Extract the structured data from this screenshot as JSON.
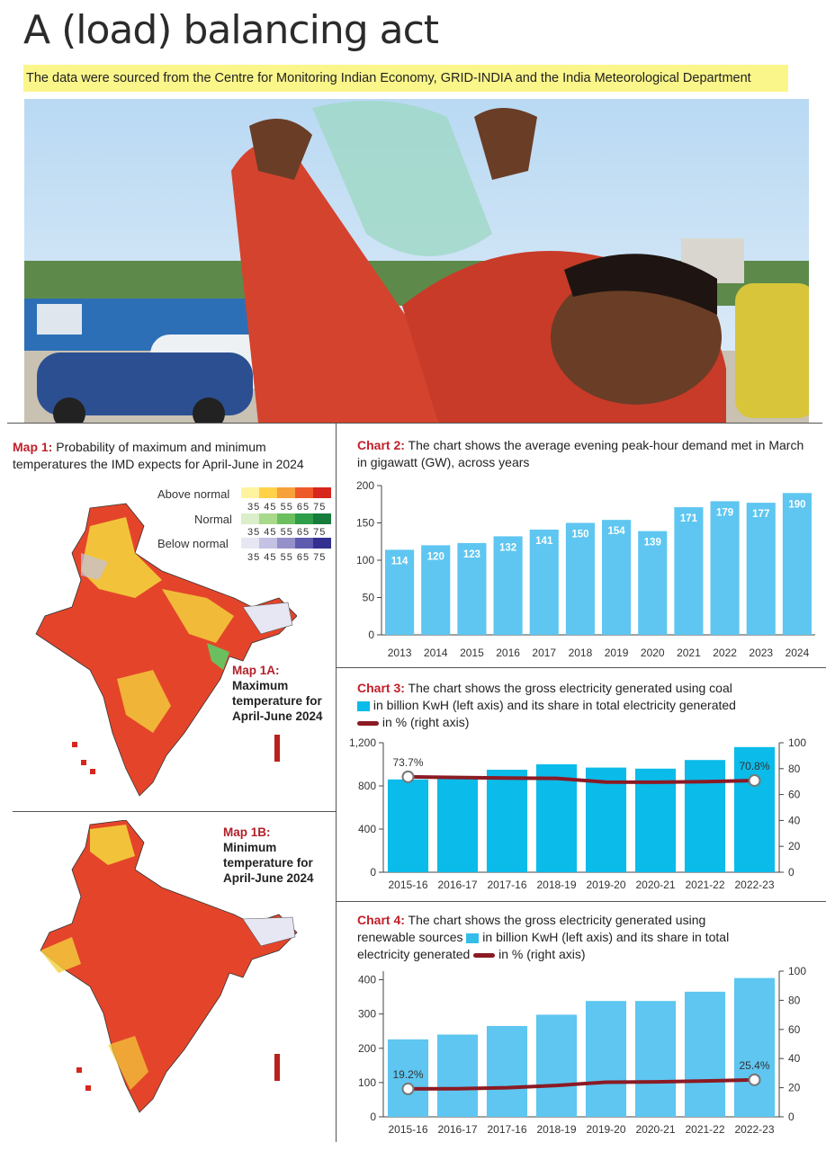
{
  "page": {
    "title": "A (load) balancing act",
    "subtitle": "The data were sourced from the Centre for Monitoring Indian Economy, GRID-INDIA and the India Meteorological Department",
    "highlight_color": "#fbf68a"
  },
  "photo": {
    "description_icon": "man-drinking-water-photo-icon"
  },
  "map1": {
    "label": "Map 1:",
    "caption": "Probability of maximum and minimum temperatures the IMD expects for April-June in 2024",
    "legend": {
      "above": "Above normal",
      "normal": "Normal",
      "below": "Below normal",
      "scale": "35 45 55 65 75",
      "above_colors": [
        "#fff3a0",
        "#ffd24a",
        "#f7a13a",
        "#ef5a2a",
        "#d7261e"
      ],
      "normal_colors": [
        "#d9eec9",
        "#a9d98a",
        "#6cbf5e",
        "#2f9e49",
        "#177b3c"
      ],
      "below_colors": [
        "#e7e6f3",
        "#c3c2e3",
        "#9491c9",
        "#5f5caf",
        "#333090"
      ]
    },
    "map_1a": {
      "heading": "Map 1A:",
      "text": "Maximum temperature for April-June 2024"
    },
    "map_1b": {
      "heading": "Map 1B:",
      "text": "Minimum temperature for April-June 2024"
    }
  },
  "chart2_caption": {
    "label": "Chart 2:",
    "text": "The chart shows the average evening peak-hour demand met in March in gigawatt (GW), across years"
  },
  "chart3_caption": {
    "label": "Chart 3:",
    "text1": "The chart shows the gross electricity generated using coal",
    "text2": "in billion KwH (left axis) and its share in total electricity generated",
    "text3": "in % (right axis)"
  },
  "chart4_caption": {
    "label": "Chart 4:",
    "text1": "The chart shows the gross electricity generated using",
    "text2a": "renewable sources",
    "text2b": "in billion KwH (left axis) and its share in total",
    "text3a": "electricity generated",
    "text3b": "in % (right axis)"
  },
  "chart_data": [
    {
      "id": "chart2",
      "type": "bar",
      "categories": [
        "2013",
        "2014",
        "2015",
        "2016",
        "2017",
        "2018",
        "2019",
        "2020",
        "2021",
        "2022",
        "2023",
        "2024"
      ],
      "values": [
        114,
        120,
        123,
        132,
        141,
        150,
        154,
        139,
        171,
        179,
        177,
        190
      ],
      "ylim": [
        0,
        200
      ],
      "yticks": [
        0,
        50,
        100,
        150,
        200
      ],
      "bar_color": "#5ec6f0",
      "grid": false
    },
    {
      "id": "chart3",
      "type": "bar",
      "categories": [
        "2015-16",
        "2016-17",
        "2017-16",
        "2018-19",
        "2019-20",
        "2020-21",
        "2021-22",
        "2022-23"
      ],
      "series": [
        {
          "values": [
            860,
            870,
            950,
            1000,
            970,
            960,
            1040,
            1160
          ],
          "axis": "left"
        },
        {
          "values": [
            73.7,
            73.2,
            72.7,
            72.5,
            69.6,
            69.5,
            70.0,
            70.8
          ],
          "axis": "right"
        }
      ],
      "ylim_left": [
        0,
        1200
      ],
      "yticks_left": [
        "0",
        "400",
        "800",
        "1,200"
      ],
      "ylim_right": [
        0,
        100
      ],
      "yticks_right": [
        0,
        20,
        40,
        60,
        80,
        100
      ],
      "annotations": [
        "73.7%",
        "70.8%"
      ],
      "bar_color": "#0bbbe9",
      "line_color": "#8b1a24"
    },
    {
      "id": "chart4",
      "type": "bar",
      "categories": [
        "2015-16",
        "2016-17",
        "2017-16",
        "2018-19",
        "2019-20",
        "2020-21",
        "2021-22",
        "2022-23"
      ],
      "series": [
        {
          "values": [
            226,
            240,
            265,
            298,
            338,
            338,
            365,
            405
          ],
          "axis": "left"
        },
        {
          "values": [
            19.2,
            19.3,
            20.0,
            21.5,
            23.8,
            24.0,
            24.6,
            25.4
          ],
          "axis": "right"
        }
      ],
      "ylim_left": [
        0,
        425
      ],
      "yticks_left": [
        0,
        100,
        200,
        300,
        400
      ],
      "ylim_right": [
        0,
        100
      ],
      "yticks_right": [
        0,
        20,
        40,
        60,
        80,
        100
      ],
      "annotations": [
        "19.2%",
        "25.4%"
      ],
      "bar_color": "#5ec6f0",
      "line_color": "#8b1a24"
    }
  ]
}
